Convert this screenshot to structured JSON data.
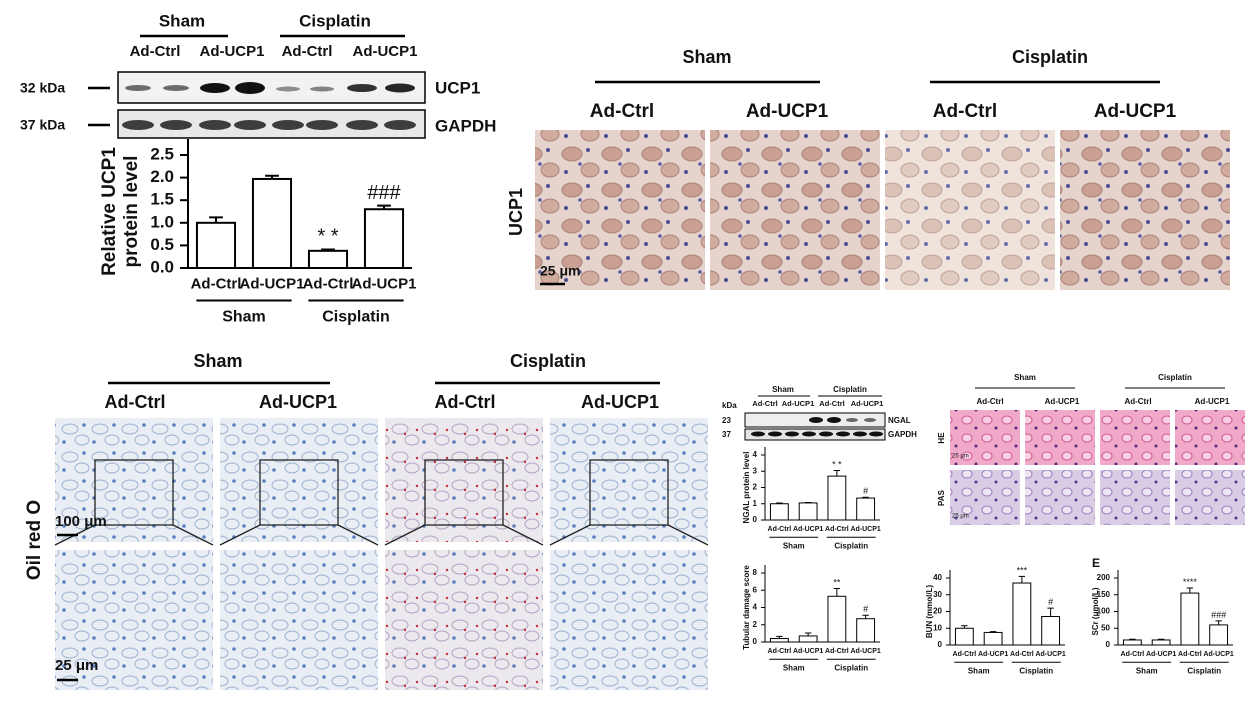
{
  "chart_data": [
    {
      "type": "bar",
      "ylabel": [
        "Relative UCP1",
        "protein level"
      ],
      "categories": [
        "Ad-Ctrl",
        "Ad-UCP1",
        "Ad-Ctrl",
        "Ad-UCP1"
      ],
      "groups": [
        "Sham",
        "Cisplatin"
      ],
      "values": [
        1.0,
        1.97,
        0.38,
        1.3
      ],
      "errors": [
        0.12,
        0.07,
        0.03,
        0.08
      ],
      "annotations": [
        null,
        null,
        "* *",
        "###"
      ],
      "ylim": [
        0,
        2.5
      ],
      "yticks": [
        {
          "value": 0,
          "label": "0.0"
        },
        0.5,
        {
          "value": 1,
          "label": "1.0"
        },
        1.5,
        {
          "value": 2,
          "label": "2.0"
        },
        2.5
      ],
      "color": "#ffffff"
    },
    {
      "type": "bar",
      "ylabel": [
        "NGAL protein level"
      ],
      "categories": [
        "Ad-Ctrl",
        "Ad-UCP1",
        "Ad-Ctrl",
        "Ad-UCP1"
      ],
      "groups": [
        "Sham",
        "Cisplatin"
      ],
      "values": [
        1.0,
        1.05,
        2.7,
        1.35
      ],
      "errors": [
        0.05,
        0.03,
        0.35,
        0.05
      ],
      "annotations": [
        null,
        null,
        "* *",
        "#"
      ],
      "ylim": [
        0,
        4
      ],
      "yticks": [
        0,
        1,
        2,
        3,
        4
      ],
      "color": "#ffffff"
    },
    {
      "type": "bar",
      "ylabel": [
        "Tubular damage score"
      ],
      "categories": [
        "Ad-Ctrl",
        "Ad-UCP1",
        "Ad-Ctrl",
        "Ad-UCP1"
      ],
      "groups": [
        "Sham",
        "Cisplatin"
      ],
      "values": [
        0.4,
        0.7,
        5.3,
        2.7
      ],
      "errors": [
        0.25,
        0.35,
        0.9,
        0.4
      ],
      "annotations": [
        null,
        null,
        "**",
        "#"
      ],
      "ylim": [
        0,
        8
      ],
      "yticks": [
        0,
        2,
        4,
        6,
        8
      ],
      "color": "#ffffff"
    },
    {
      "type": "bar",
      "ylabel": [
        "BUN (mmol/L)"
      ],
      "categories": [
        "Ad-Ctrl",
        "Ad-UCP1",
        "Ad-Ctrl",
        "Ad-UCP1"
      ],
      "groups": [
        "Sham",
        "Cisplatin"
      ],
      "values": [
        10,
        7.5,
        37,
        17
      ],
      "errors": [
        1.5,
        0.5,
        4,
        5
      ],
      "annotations": [
        null,
        null,
        "***",
        "#"
      ],
      "ylim": [
        0,
        40
      ],
      "yticks": [
        0,
        10,
        20,
        30,
        40
      ],
      "color": "#ffffff"
    },
    {
      "type": "bar",
      "panel_label": "E",
      "ylabel": [
        "SCr (μmol/L)"
      ],
      "categories": [
        "Ad-Ctrl",
        "Ad-UCP1",
        "Ad-Ctrl",
        "Ad-UCP1"
      ],
      "groups": [
        "Sham",
        "Cisplatin"
      ],
      "values": [
        15,
        15,
        155,
        60
      ],
      "errors": [
        2,
        2,
        15,
        12
      ],
      "annotations": [
        null,
        null,
        "****",
        "###"
      ],
      "ylim": [
        0,
        200
      ],
      "yticks": [
        0,
        50,
        100,
        150,
        200
      ],
      "color": "#ffffff"
    }
  ],
  "blot_ucp1": {
    "groups": [
      "Sham",
      "Cisplatin"
    ],
    "lanes": [
      "Ad-Ctrl",
      "Ad-UCP1",
      "Ad-Ctrl",
      "Ad-UCP1"
    ],
    "markers": [
      "32 kDa",
      "37 kDa"
    ],
    "proteins": [
      "UCP1",
      "GAPDH"
    ]
  },
  "ihc_ucp1": {
    "groups": [
      "Sham",
      "Cisplatin"
    ],
    "columns": [
      "Ad-Ctrl",
      "Ad-UCP1",
      "Ad-Ctrl",
      "Ad-UCP1"
    ],
    "row": "UCP1",
    "scale": "25 μm"
  },
  "oil_red": {
    "groups": [
      "Sham",
      "Cisplatin"
    ],
    "columns": [
      "Ad-Ctrl",
      "Ad-UCP1",
      "Ad-Ctrl",
      "Ad-UCP1"
    ],
    "row": "Oil red O",
    "scales": [
      "100 μm",
      "25 μm"
    ]
  },
  "blot_ngal": {
    "groups": [
      "Sham",
      "Cisplatin"
    ],
    "lanes": [
      "Ad-Ctrl",
      "Ad-UCP1",
      "Ad-Ctrl",
      "Ad-UCP1"
    ],
    "unit": "kDa",
    "markers": [
      "23",
      "37"
    ],
    "proteins": [
      "NGAL",
      "GAPDH"
    ]
  },
  "histology": {
    "groups": [
      "Sham",
      "Cisplatin"
    ],
    "columns": [
      "Ad-Ctrl",
      "Ad-UCP1",
      "Ad-Ctrl",
      "Ad-UCP1"
    ],
    "rows": [
      "HE",
      "PAS"
    ],
    "scale": "25 μm"
  }
}
